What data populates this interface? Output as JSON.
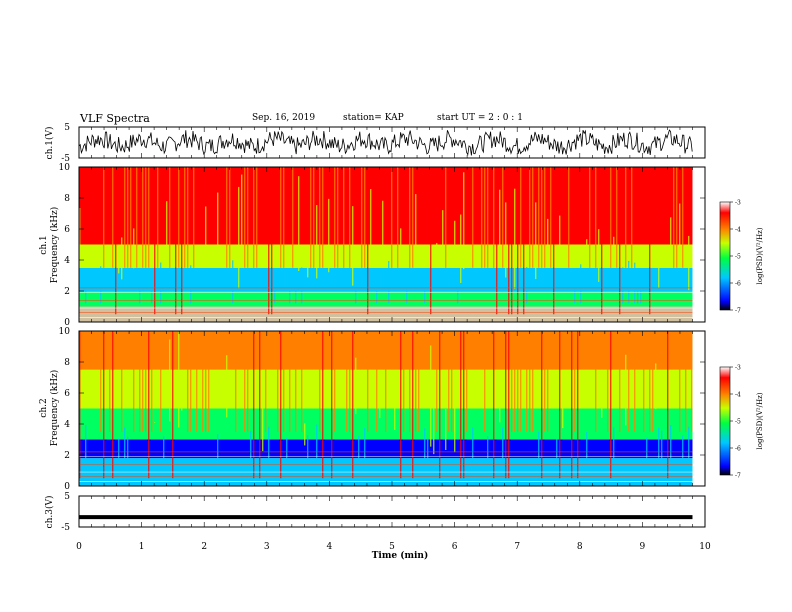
{
  "header": {
    "title": "VLF Spectra",
    "date": "Sep. 16, 2019",
    "station": "station= KAP",
    "start_ut": "start  UT  =   2  : 0  : 1"
  },
  "chart_data": [
    {
      "type": "line",
      "panel": "ch1-waveform",
      "ylabel": "ch.1(V)",
      "ylim": [
        -5,
        5
      ],
      "yticks": [
        "5",
        "-5"
      ],
      "xlim": [
        0,
        10
      ],
      "x_extent_min": 9.8,
      "description_series": "voltage waveform (noisy, roughly -4 to 4 V)"
    },
    {
      "type": "heatmap",
      "panel": "ch1-spectrogram",
      "ylabel": "ch.1\nFrequency (kHz)",
      "ylabel_line1": "ch.1",
      "ylabel_line2": "Frequency (kHz)",
      "ylim": [
        0,
        10
      ],
      "yticks": [
        "0",
        "2",
        "4",
        "6",
        "8",
        "10"
      ],
      "xlim": [
        0,
        10
      ],
      "colorbar": {
        "label": "log(PSD)(V²/Hz)",
        "range": [
          -7,
          -3
        ],
        "ticks": [
          "-3",
          "-4",
          "-5",
          "-6",
          "-7"
        ]
      }
    },
    {
      "type": "heatmap",
      "panel": "ch2-spectrogram",
      "ylabel_line1": "ch.2",
      "ylabel_line2": "Frequency (kHz)",
      "ylim": [
        0,
        10
      ],
      "yticks": [
        "0",
        "2",
        "4",
        "6",
        "8",
        "10"
      ],
      "xlim": [
        0,
        10
      ],
      "colorbar": {
        "label": "log(PSD)(V²/Hz)",
        "range": [
          -7,
          -3
        ],
        "ticks": [
          "-3",
          "-4",
          "-5",
          "-6",
          "-7"
        ]
      }
    },
    {
      "type": "line",
      "panel": "ch3-waveform",
      "ylabel": "ch.3(V)",
      "ylim": [
        -5,
        5
      ],
      "yticks": [
        "5",
        "-5"
      ],
      "xlim": [
        0,
        10
      ],
      "constant_value": -1.8
    }
  ],
  "xaxis": {
    "label": "Time (min)",
    "ticks": [
      "0",
      "1",
      "2",
      "3",
      "4",
      "5",
      "6",
      "7",
      "8",
      "9",
      "10"
    ]
  },
  "colors": {
    "spectrum": [
      "#000080",
      "#0000ff",
      "#00c8ff",
      "#00ff60",
      "#c8ff00",
      "#ffd700",
      "#ff8000",
      "#ff0000"
    ],
    "axes": "#000000"
  }
}
